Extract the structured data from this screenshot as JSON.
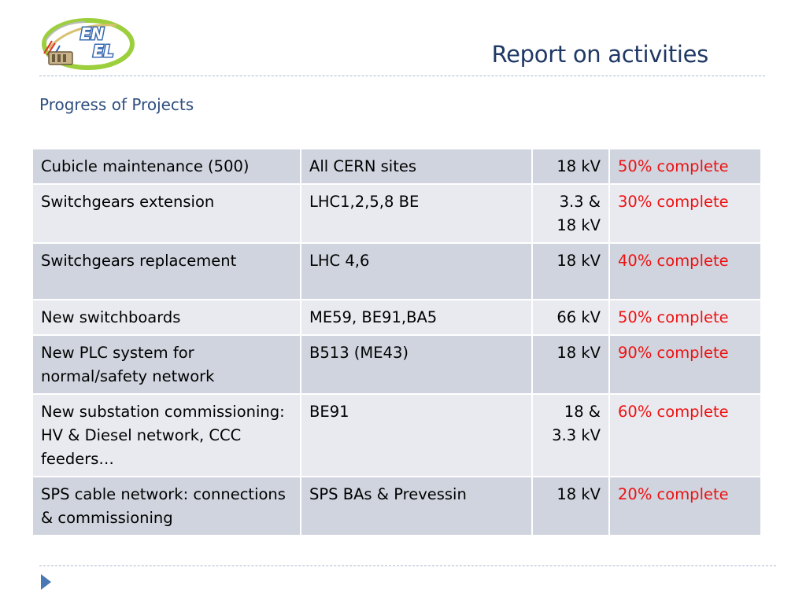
{
  "header": {
    "logo_line1": "EN",
    "logo_line2": "EL",
    "title": "Report on activities"
  },
  "subtitle": "Progress of Projects",
  "colors": {
    "title": "#1f3864",
    "status_text": "#ee1111",
    "row_dark": "#cfd4de",
    "row_light": "#e9eaf0",
    "separator": "#a9b8d0",
    "bullet_arrow": "#4a78b5"
  },
  "projects": [
    {
      "name": "Cubicle maintenance (500)",
      "location": "All CERN sites",
      "voltage": "18 kV",
      "status": "50% complete",
      "progress_percent": 50
    },
    {
      "name": "Switchgears extension",
      "location": "LHC1,2,5,8 BE",
      "voltage": "3.3 & 18 kV",
      "status": "30% complete",
      "progress_percent": 30
    },
    {
      "name": "Switchgears replacement",
      "location": "LHC 4,6",
      "voltage": "18 kV",
      "status": "40% complete",
      "progress_percent": 40
    },
    {
      "name": "New switchboards",
      "location": "ME59, BE91,BA5",
      "voltage": "66 kV",
      "status": "50% complete",
      "progress_percent": 50
    },
    {
      "name": "New PLC system for normal/safety network",
      "location": "B513 (ME43)",
      "voltage": "18 kV",
      "status": "90% complete",
      "progress_percent": 90
    },
    {
      "name": "New substation commissioning: HV & Diesel network, CCC feeders…",
      "location": "BE91",
      "voltage": "18 & 3.3 kV",
      "status": "60% complete",
      "progress_percent": 60
    },
    {
      "name": "SPS cable network: connections & commissioning",
      "location": "SPS BAs & Prevessin",
      "voltage": "18 kV",
      "status": "20% complete",
      "progress_percent": 20
    }
  ],
  "icons": {
    "logo": "enel-logo-icon",
    "bullet": "bullet-arrow-icon"
  }
}
